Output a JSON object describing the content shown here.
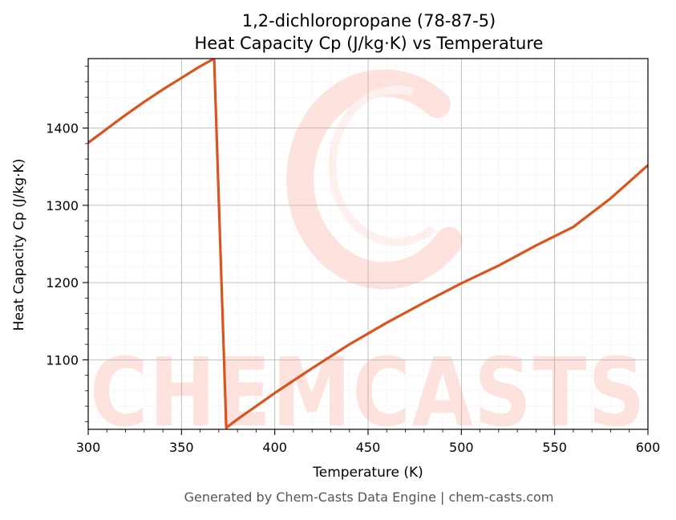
{
  "chart_data": {
    "type": "line",
    "title": "1,2-dichloropropane (78-87-5)",
    "subtitle": "Heat Capacity Cp (J/kg·K) vs Temperature",
    "xlabel": "Temperature (K)",
    "ylabel": "Heat Capacity Cp (J/kg·K)",
    "xlim": [
      300,
      600
    ],
    "ylim": [
      1010,
      1490
    ],
    "xticks": [
      300,
      350,
      400,
      450,
      500,
      550,
      600
    ],
    "yticks": [
      1100,
      1200,
      1300,
      1400
    ],
    "grid": true,
    "line_color": "#d9541e",
    "series": [
      {
        "x": [
          300,
          310,
          320,
          330,
          340,
          350,
          360,
          367.5,
          374,
          380,
          400,
          420,
          440,
          460,
          480,
          500,
          520,
          540,
          560,
          580,
          600
        ],
        "values": [
          1381,
          1399,
          1417,
          1434,
          1450,
          1465,
          1480,
          1490,
          1012,
          1023,
          1057,
          1089,
          1120,
          1148,
          1174,
          1199,
          1222,
          1248,
          1272,
          1309,
          1352
        ]
      }
    ],
    "watermark": "CHEMCASTS"
  },
  "footer": "Generated by Chem-Casts Data Engine | chem-casts.com"
}
